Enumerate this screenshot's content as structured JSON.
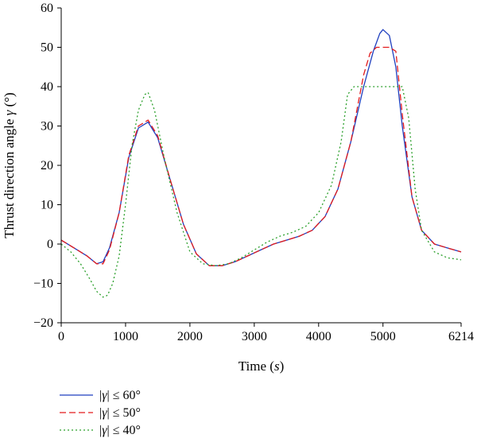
{
  "chart_data": {
    "type": "line",
    "xlabel": "Time (s)",
    "xlabel_parts": {
      "prefix": "Time (",
      "italic": "s",
      "suffix": ")"
    },
    "ylabel": "Thrust direction angle γ (°)",
    "ylabel_parts": {
      "prefix": "Thrust direction angle ",
      "italic": "γ",
      "suffix": " (°)"
    },
    "xlim": [
      0,
      6214
    ],
    "ylim": [
      -20,
      60
    ],
    "xticks": [
      0,
      1000,
      2000,
      3000,
      4000,
      5000,
      6214
    ],
    "xtick_labels": [
      "0",
      "1000",
      "2000",
      "3000",
      "4000",
      "5000",
      "6214"
    ],
    "yticks": [
      -20,
      -10,
      0,
      10,
      20,
      30,
      40,
      50,
      60
    ],
    "ytick_labels": [
      "−20",
      "−10",
      "0",
      "10",
      "20",
      "30",
      "40",
      "50",
      "60"
    ],
    "grid": false,
    "legend_placement": "bottom-left, below plot",
    "series": [
      {
        "name": "|γ| ≤ 60°",
        "legend_parts": {
          "italic": "γ",
          "suffix": " ≤ 60°"
        },
        "color": "#1f3fbf",
        "dash": "solid",
        "x": [
          0,
          200,
          400,
          550,
          650,
          750,
          900,
          1050,
          1200,
          1350,
          1500,
          1700,
          1900,
          2100,
          2300,
          2500,
          2700,
          2900,
          3100,
          3300,
          3500,
          3700,
          3900,
          4100,
          4300,
          4500,
          4700,
          4850,
          4950,
          5000,
          5100,
          5200,
          5300,
          5450,
          5600,
          5800,
          6000,
          6214
        ],
        "y": [
          1,
          -1,
          -3,
          -5,
          -4.5,
          -1,
          8,
          22,
          29.5,
          31,
          27,
          16,
          5,
          -2.5,
          -5.5,
          -5.5,
          -4.5,
          -3,
          -1.5,
          0,
          1,
          2,
          3.5,
          7,
          14,
          26,
          40,
          49,
          53.5,
          54.5,
          53,
          45,
          30,
          12,
          3.5,
          0,
          -1,
          -2
        ]
      },
      {
        "name": "|γ| ≤ 50°",
        "legend_parts": {
          "italic": "γ",
          "suffix": " ≤ 50°"
        },
        "color": "#e31a1c",
        "dash": "dashed",
        "x": [
          0,
          200,
          400,
          550,
          650,
          750,
          900,
          1050,
          1200,
          1350,
          1500,
          1700,
          1900,
          2100,
          2300,
          2500,
          2700,
          2900,
          3100,
          3300,
          3500,
          3700,
          3900,
          4100,
          4300,
          4500,
          4700,
          4800,
          4900,
          5000,
          5100,
          5200,
          5300,
          5450,
          5600,
          5800,
          6000,
          6214
        ],
        "y": [
          1,
          -1,
          -3,
          -5,
          -5,
          -1.5,
          8,
          22.5,
          30,
          31.5,
          27.5,
          16,
          5,
          -2.5,
          -5.5,
          -5.5,
          -4.5,
          -3,
          -1.5,
          0,
          1,
          2,
          3.5,
          7,
          14,
          26,
          43,
          48.5,
          50,
          50,
          50,
          49,
          33,
          12,
          3.5,
          0,
          -1,
          -2
        ]
      },
      {
        "name": "|γ| ≤ 40°",
        "legend_parts": {
          "italic": "γ",
          "suffix": " ≤ 40°"
        },
        "color": "#2ca02c",
        "dash": "dotted",
        "x": [
          0,
          150,
          300,
          450,
          550,
          650,
          720,
          800,
          900,
          1000,
          1100,
          1200,
          1300,
          1350,
          1450,
          1600,
          1800,
          2000,
          2200,
          2400,
          2600,
          2800,
          3000,
          3200,
          3400,
          3600,
          3800,
          4000,
          4200,
          4350,
          4450,
          4550,
          5000,
          5300,
          5400,
          5500,
          5600,
          5800,
          6000,
          6214
        ],
        "y": [
          0,
          -2,
          -5,
          -9,
          -12,
          -13.5,
          -13,
          -10,
          -3,
          10,
          25,
          34,
          38,
          38.5,
          34,
          22,
          8,
          -2,
          -5,
          -5.5,
          -5,
          -3.5,
          -1.5,
          0.5,
          2,
          3,
          4.5,
          8,
          15,
          26,
          38,
          40,
          40,
          40,
          32,
          14,
          3.5,
          -2,
          -3.5,
          -4
        ]
      }
    ]
  }
}
